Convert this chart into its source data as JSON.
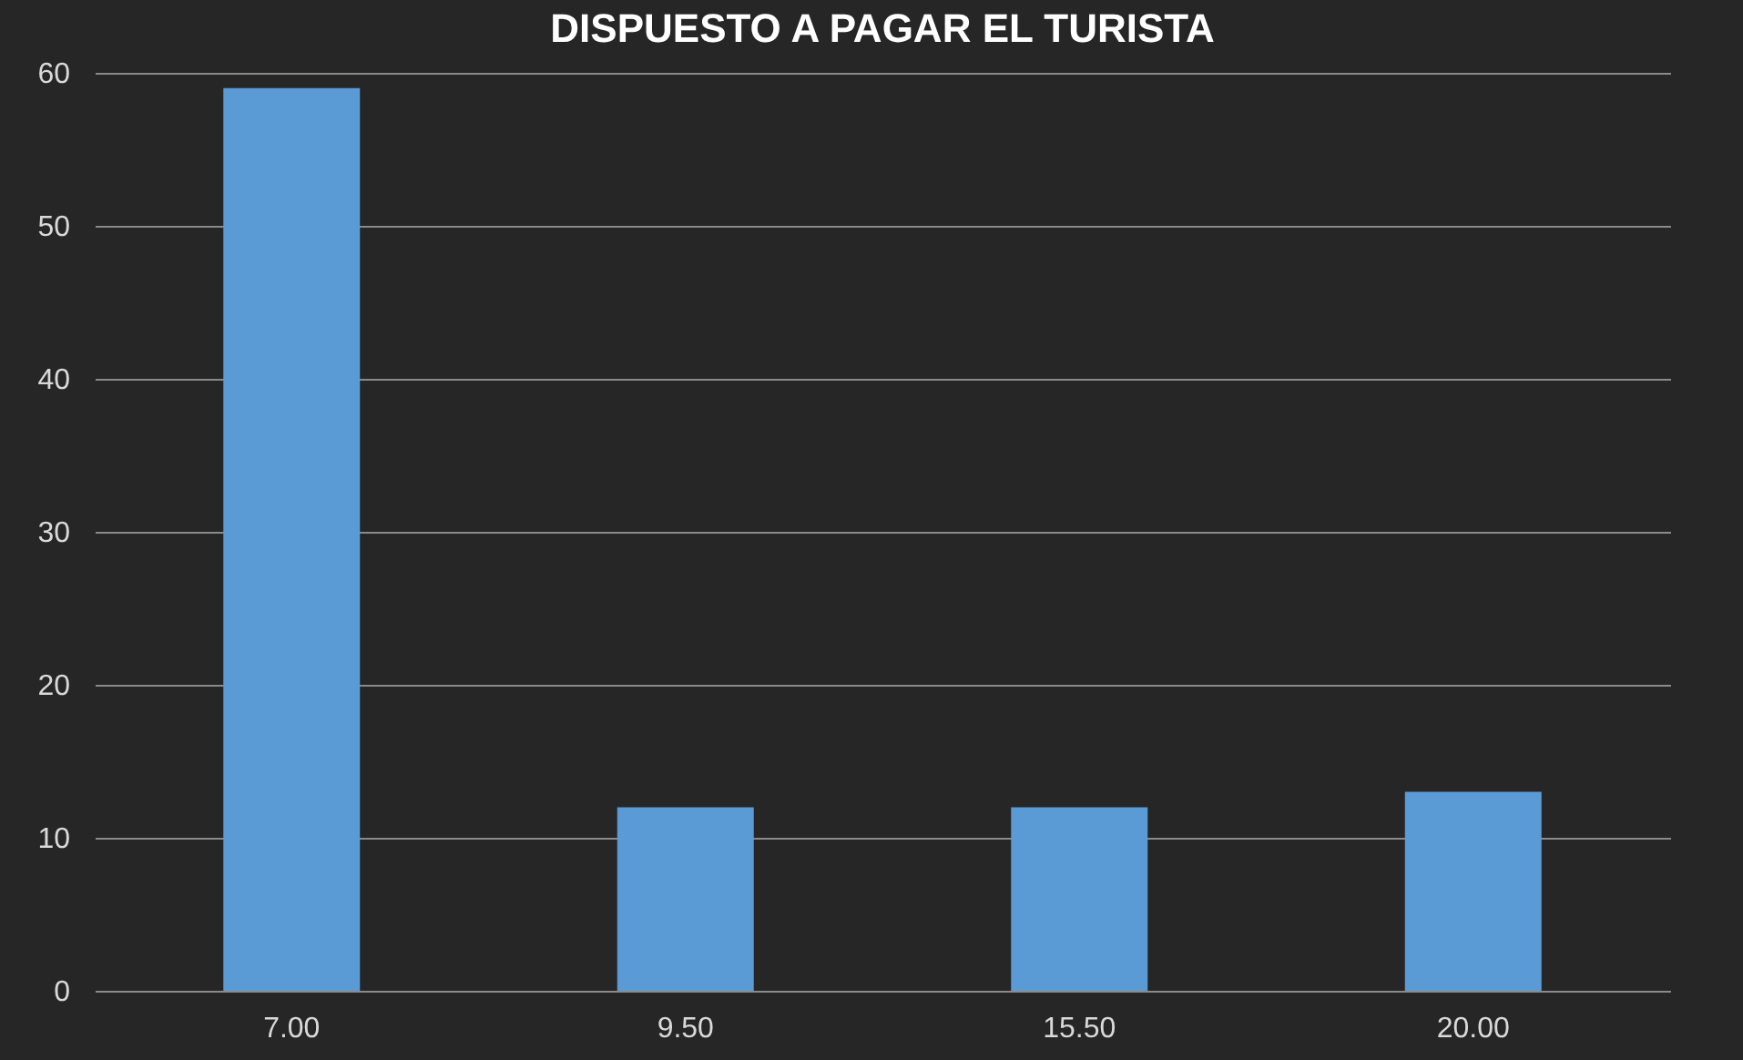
{
  "chart_data": {
    "type": "bar",
    "title": "DISPUESTO A PAGAR EL TURISTA",
    "categories": [
      "7.00",
      "9.50",
      "15.50",
      "20.00"
    ],
    "values": [
      59,
      12,
      12,
      13
    ],
    "color": "#5b9bd5",
    "ylim": [
      0,
      60
    ],
    "yticks": [
      0,
      10,
      20,
      30,
      40,
      50,
      60
    ],
    "grid": "y"
  }
}
